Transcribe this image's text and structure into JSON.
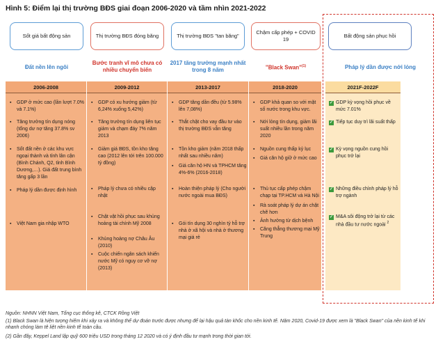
{
  "title": "Hình 5: Điểm lại thị trường BĐS giai đoạn 2006-2020 và tầm nhìn 2021-2022",
  "phases": [
    {
      "label": "Sốt giá bất động sản",
      "subtitle": "Đất nền lên ngôi",
      "subtitle_color": "blue",
      "period": "2006-2008",
      "items": [
        "GDP ở mức cao (lần lượt 7.0% và 7.1%)",
        "Tăng trưởng tín dụng nóng (tổng dư nợ tăng 37.8% sv 2006)",
        "Sốt đất nền ở các khu vực ngoại thành và tỉnh lân cận (Bình Chánh, Q2, tỉnh Bình Dương,…). Giá đất trung bình tăng gấp 3 lần",
        "Pháp lý dần được định hình",
        "Việt Nam gia nhập WTO"
      ]
    },
    {
      "label": "Thị trường BĐS đóng băng",
      "subtitle": "Bước tranh vĩ mô chưa có nhiều chuyển biến",
      "subtitle_color": "red",
      "period": "2009-2012",
      "items": [
        "GDP có xu hướng giảm (từ 6,24% xuống 5,42%)",
        "Tăng trưởng tín dụng liên tục giảm và chạm đáy 7% năm 2013",
        "Giảm giá BĐS, tồn kho tăng cao (2012 lên tới trên 100.000 tỷ đồng)",
        "Pháp lý chưa có nhiều cập nhật",
        "Chật vật hồi phục sau khủng hoảng tài chính Mỹ 2008",
        "Khủng hoảng nợ Châu Âu (2010)",
        "Cuộc chiến ngân sách khiến nước Mỹ có nguy cơ vỡ nợ (2013)"
      ]
    },
    {
      "label": "Thị trường BĐS \"tan băng\"",
      "subtitle": "2017 tăng trưởng mạnh nhất trong 8 năm",
      "subtitle_color": "blue",
      "period": "2013-2017",
      "items": [
        "GDP tăng dần đều (từ 5.98% lên 7,08%)",
        "Thắt chặt cho vay đầu tư vào thị trường BĐS vẫn tăng",
        "Tồn kho giảm (năm 2018 thấp nhất sau nhiều năm)",
        "Giá căn hộ HN và TPHCM tăng 4%-6% (2016-2018)",
        "Hoàn thiện pháp lý (Cho người nước ngoài mua BĐS)",
        "Gói tín dụng 30 nghìn tỷ hỗ trợ nhà ở xã hội và nhà ở thương mại giá rẻ"
      ]
    },
    {
      "label": "Chậm cấp phép + COVID 19",
      "subtitle": "\"Black Swan\"",
      "subtitle_sup": "(1)",
      "subtitle_color": "red",
      "period": "2018-2020",
      "items": [
        "GDP khả quan so với mặt số nước trong khu vực.",
        "Nới lỏng tín dụng, giảm lãi suất nhiều lần trong năm 2020",
        "Nguồn cung thấp kỷ lục",
        "Giá căn hộ giữ ở mức cao",
        "Thủ tục cấp phép chậm chạp tại TP.HCM và Hà Nội",
        "Rà soát pháp lý dự án chặt chẽ hơn",
        "Ảnh hưởng từ dịch bệnh",
        "Căng thẳng thương mại Mỹ Trung"
      ]
    },
    {
      "label": "Bất động sản phục hồi",
      "subtitle": "Pháp lý dần được nới lỏng",
      "subtitle_color": "blue",
      "period": "2021F-2022F",
      "items": [
        "GDP kỳ vọng hồi phục về mức 7.01%",
        "Tiếp tục duy trì lãi suất thấp",
        "Kỳ vọng nguồn cung hồi phục trở lại",
        "Những điều chỉnh pháp lý hỗ trợ ngành",
        "M&A sôi động trở lại từ các nhà đầu tư nước ngoài",
        "2"
      ]
    }
  ],
  "footnotes": {
    "source": "Nguồn: NHNN Việt Nam, Tổng cục thống kê, CTCK Rồng Việt",
    "note1": "(1) Black Swan là hiện tượng hiếm khi xảy ra và không thể dự đoán trước được nhưng để lại hậu quả tàn khốc cho nền kinh tế. Năm 2020, Covid-19 được xem là \"Black Swan\" của nền kinh tế khi nhanh chóng làm tê liệt nền kinh tế toàn cầu.",
    "note2": "(2) Gần đây, Keppel Land lập quỹ 600 triệu USD trong tháng 12 2020 và có ý định đầu tư mạnh trong thời gian tới."
  },
  "colors": {
    "orange": "#f4b183",
    "light": "#fde9c4",
    "blue": "#3a7fc4",
    "red": "#d0332a",
    "check": "#3c9a3c"
  },
  "icons": {
    "bullet": "square-bullet-icon",
    "check": "checkbox-icon"
  }
}
